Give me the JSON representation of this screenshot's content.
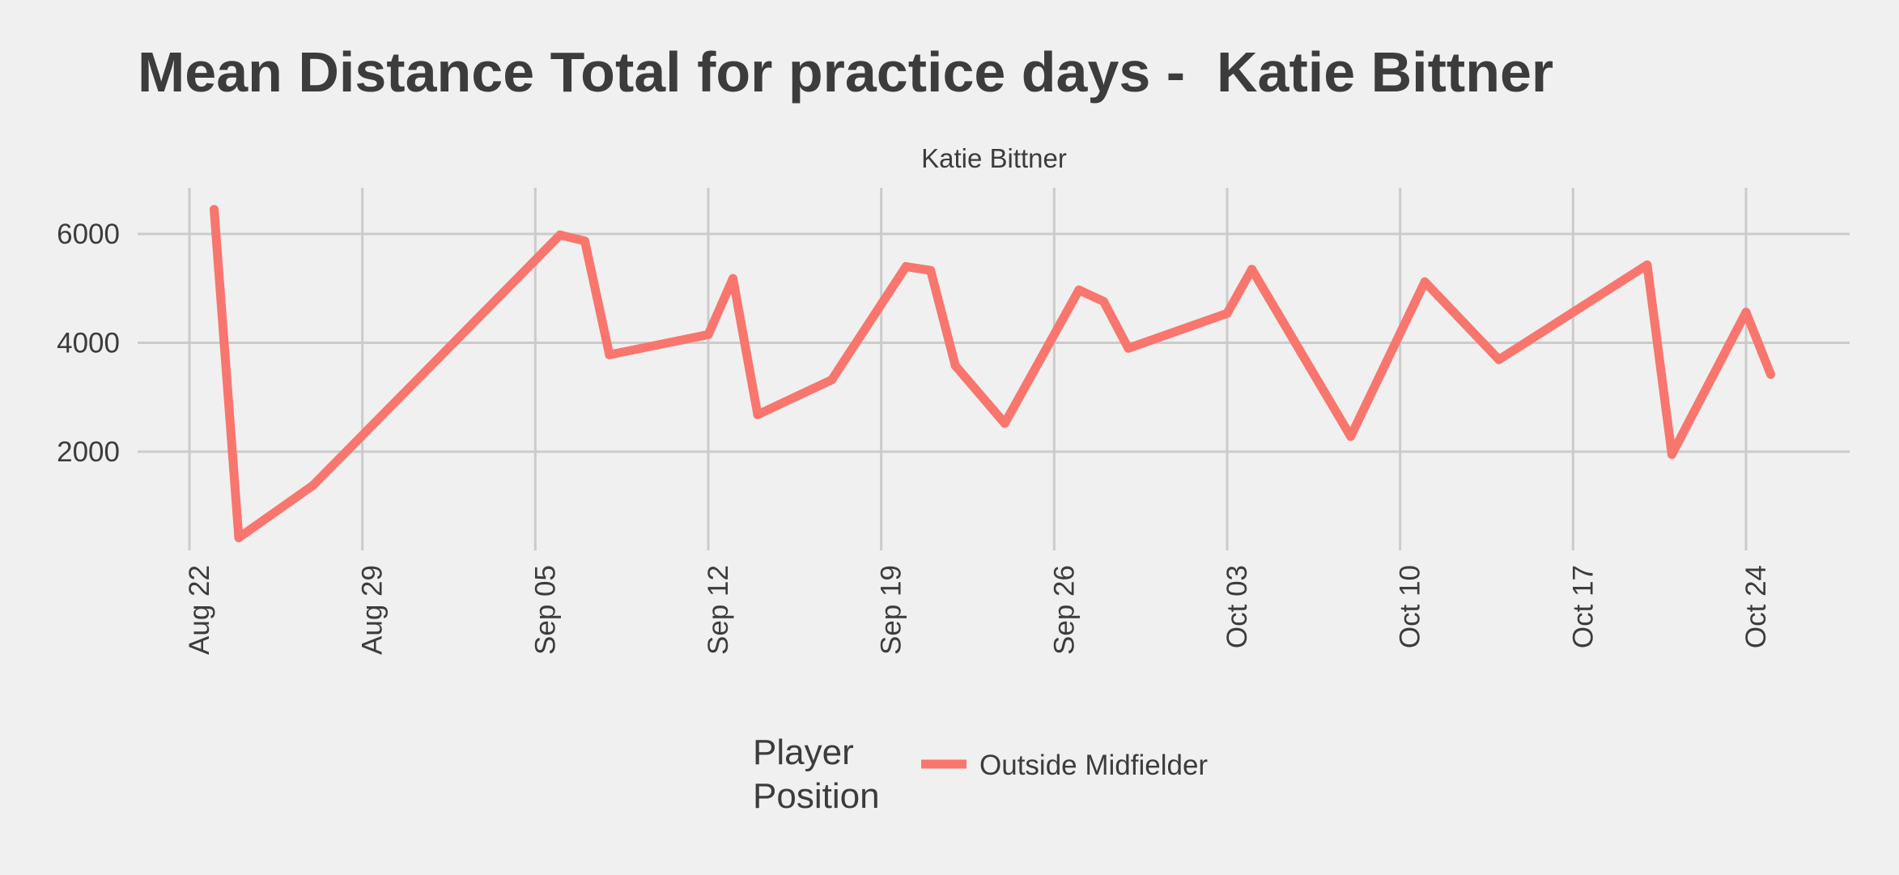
{
  "chart_data": {
    "type": "line",
    "title": "Mean Distance Total for practice days -  Katie Bittner",
    "facet_label": "Katie Bittner",
    "xlabel": "",
    "ylabel": "",
    "x_axis_type": "date",
    "xlim": [
      "2022-08-21",
      "2022-10-27"
    ],
    "ylim": [
      0,
      6800
    ],
    "x_ticks": [
      "2022-08-22",
      "2022-08-29",
      "2022-09-05",
      "2022-09-12",
      "2022-09-19",
      "2022-09-26",
      "2022-10-03",
      "2022-10-10",
      "2022-10-17",
      "2022-10-24"
    ],
    "x_tick_labels": [
      "Aug 22",
      "Aug 29",
      "Sep 05",
      "Sep 12",
      "Sep 19",
      "Sep 26",
      "Oct 03",
      "Oct 10",
      "Oct 17",
      "Oct 24"
    ],
    "y_ticks": [
      2000,
      4000,
      6000
    ],
    "y_tick_labels": [
      "2000",
      "4000",
      "6000"
    ],
    "grid": true,
    "legend": {
      "title": "Player\nPosition",
      "position": "bottom"
    },
    "series": [
      {
        "name": "Outside Midfielder",
        "color": "#f8766d",
        "points": [
          {
            "x": "2022-08-23",
            "y": 6450
          },
          {
            "x": "2022-08-24",
            "y": 420
          },
          {
            "x": "2022-08-27",
            "y": 1380
          },
          {
            "x": "2022-09-06",
            "y": 5980
          },
          {
            "x": "2022-09-07",
            "y": 5870
          },
          {
            "x": "2022-09-08",
            "y": 3780
          },
          {
            "x": "2022-09-12",
            "y": 4150
          },
          {
            "x": "2022-09-13",
            "y": 5180
          },
          {
            "x": "2022-09-14",
            "y": 2680
          },
          {
            "x": "2022-09-17",
            "y": 3320
          },
          {
            "x": "2022-09-20",
            "y": 5400
          },
          {
            "x": "2022-09-21",
            "y": 5330
          },
          {
            "x": "2022-09-22",
            "y": 3580
          },
          {
            "x": "2022-09-24",
            "y": 2520
          },
          {
            "x": "2022-09-27",
            "y": 4970
          },
          {
            "x": "2022-09-28",
            "y": 4760
          },
          {
            "x": "2022-09-29",
            "y": 3900
          },
          {
            "x": "2022-10-03",
            "y": 4540
          },
          {
            "x": "2022-10-04",
            "y": 5350
          },
          {
            "x": "2022-10-08",
            "y": 2280
          },
          {
            "x": "2022-10-11",
            "y": 5120
          },
          {
            "x": "2022-10-14",
            "y": 3690
          },
          {
            "x": "2022-10-20",
            "y": 5430
          },
          {
            "x": "2022-10-21",
            "y": 1950
          },
          {
            "x": "2022-10-24",
            "y": 4560
          },
          {
            "x": "2022-10-25",
            "y": 3420
          }
        ]
      }
    ]
  }
}
